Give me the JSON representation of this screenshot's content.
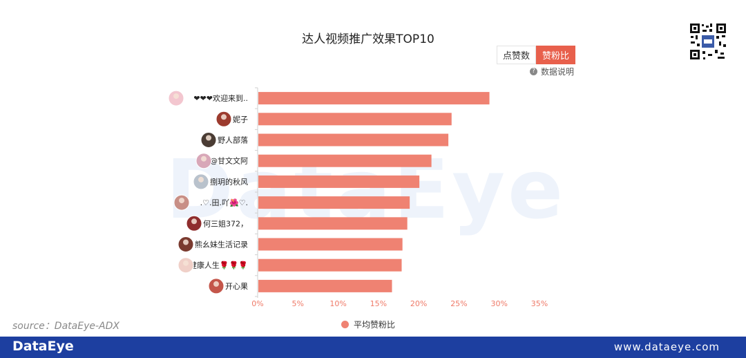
{
  "watermark": "DataEye",
  "toggle": {
    "likes": "点赞数",
    "ratio": "赞粉比"
  },
  "explain": "数据说明",
  "source": "source：DataEye-ADX",
  "footer": {
    "logo": "DataEye",
    "url": "www.dataeye.com"
  },
  "colors": {
    "bar": "#ef8272",
    "accent": "#e8604c",
    "footer": "#1d3fa0"
  },
  "chart_data": {
    "type": "bar",
    "orientation": "horizontal",
    "title": "达人视频推广效果TOP10",
    "categories": [
      "❤❤❤欢迎来到..",
      "妮子",
      "野人部落",
      "@甘文文阿",
      "捌玥的秋风",
      ".♡.田.吖🌺♡.",
      "何三姐372，",
      "熊幺妹生活记录",
      "健康人生🌹🌹🌹",
      "开心果"
    ],
    "values": [
      28.7,
      24.0,
      23.6,
      21.5,
      20.0,
      18.8,
      18.5,
      17.9,
      17.8,
      16.6
    ],
    "unit": "%",
    "xlim": [
      0,
      35
    ],
    "xticks": [
      "0%",
      "5%",
      "10%",
      "15%",
      "20%",
      "25%",
      "30%",
      "35%"
    ],
    "series": [
      {
        "name": "平均赞粉比"
      }
    ],
    "legend_position": "bottom",
    "grid": false
  }
}
